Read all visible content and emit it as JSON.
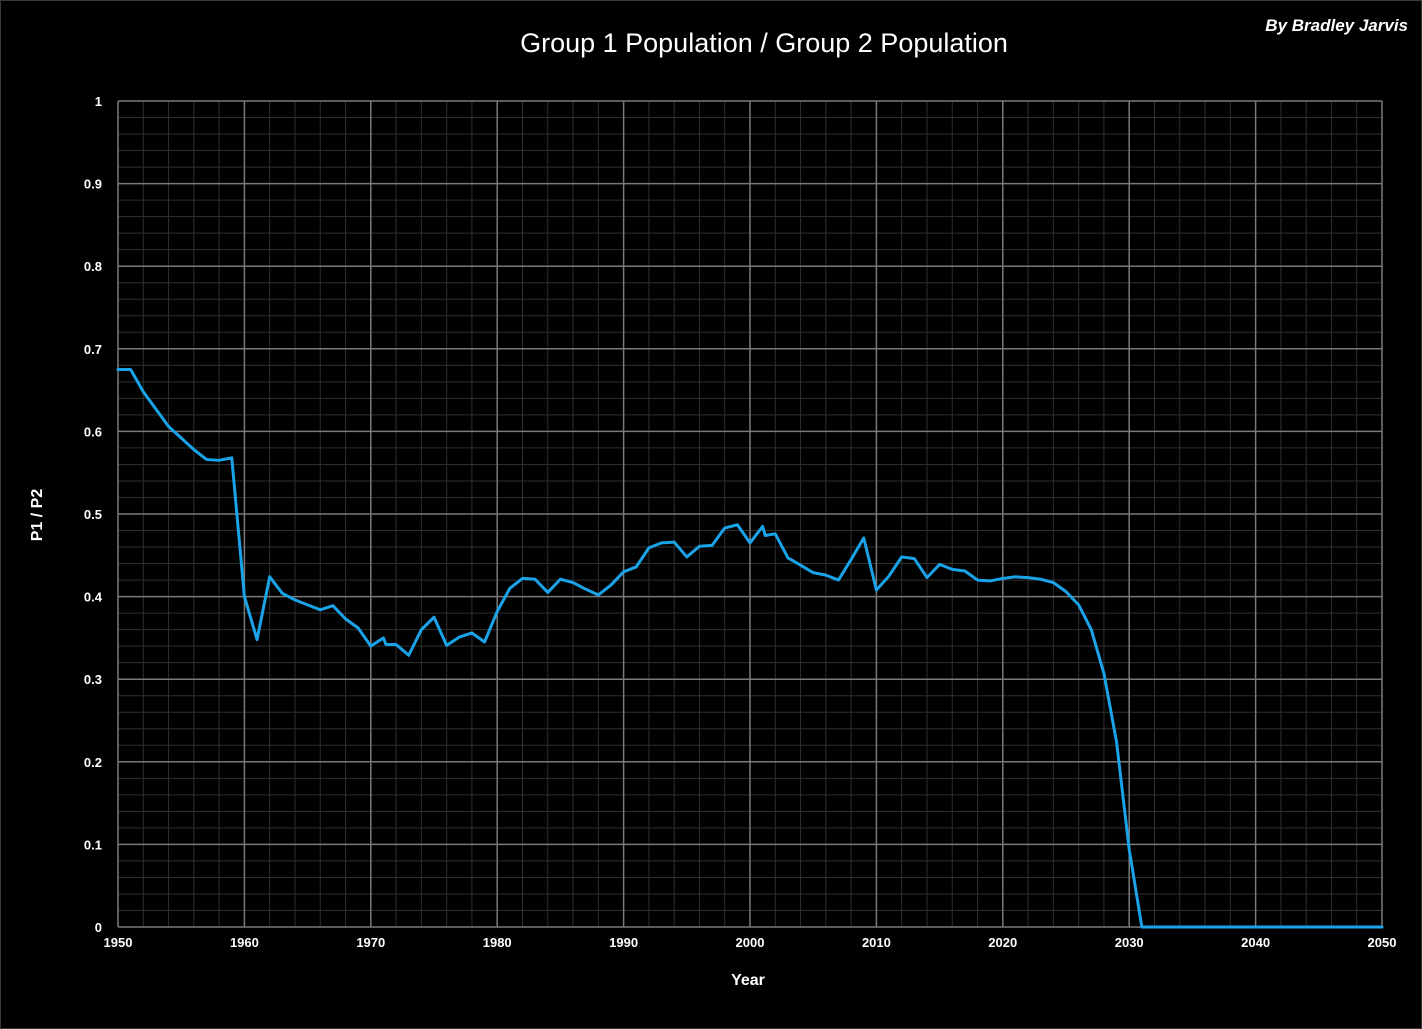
{
  "author": "By Bradley Jarvis",
  "chart_data": {
    "type": "line",
    "title": "Group 1 Population / Group 2 Population",
    "xlabel": "Year",
    "ylabel": "P1 / P2",
    "xlim": [
      1950,
      2050
    ],
    "ylim": [
      0,
      1
    ],
    "x_ticks": [
      "1950",
      "1960",
      "1970",
      "1980",
      "1990",
      "2000",
      "2010",
      "2020",
      "2030",
      "2040",
      "2050"
    ],
    "y_ticks": [
      "0",
      "0.1",
      "0.2",
      "0.3",
      "0.4",
      "0.5",
      "0.6",
      "0.7",
      "0.8",
      "0.9",
      "1"
    ],
    "grid": true,
    "line_color": "#1aa3e8",
    "series": [
      {
        "x": [
          1950,
          1951,
          1952,
          1953,
          1954,
          1955,
          1956,
          1957,
          1958,
          1959,
          1960,
          1961,
          1962,
          1963,
          1964,
          1965,
          1966,
          1967,
          1968,
          1969,
          1970,
          1971,
          1971.2,
          1972,
          1973,
          1974,
          1975,
          1976,
          1977,
          1978,
          1979,
          1980,
          1981,
          1982,
          1983,
          1984,
          1985,
          1986,
          1987,
          1988,
          1989,
          1990,
          1991,
          1992,
          1993,
          1994,
          1995,
          1996,
          1997,
          1998,
          1999,
          2000,
          2001,
          2001.2,
          2002,
          2003,
          2004,
          2005,
          2006,
          2007,
          2008,
          2009,
          2010,
          2011,
          2012,
          2013,
          2014,
          2015,
          2016,
          2017,
          2018,
          2019,
          2020,
          2021,
          2022,
          2023,
          2024,
          2025,
          2026,
          2027,
          2028,
          2029,
          2030,
          2031,
          2035,
          2040,
          2045,
          2050
        ],
        "y": [
          0.675,
          0.675,
          0.648,
          0.627,
          0.606,
          0.592,
          0.578,
          0.566,
          0.565,
          0.568,
          0.4,
          0.348,
          0.424,
          0.404,
          0.396,
          0.39,
          0.384,
          0.389,
          0.373,
          0.362,
          0.34,
          0.35,
          0.342,
          0.342,
          0.329,
          0.36,
          0.375,
          0.341,
          0.351,
          0.356,
          0.345,
          0.382,
          0.41,
          0.422,
          0.421,
          0.405,
          0.421,
          0.417,
          0.409,
          0.402,
          0.414,
          0.43,
          0.436,
          0.459,
          0.465,
          0.466,
          0.448,
          0.461,
          0.462,
          0.483,
          0.487,
          0.465,
          0.485,
          0.474,
          0.476,
          0.447,
          0.438,
          0.429,
          0.426,
          0.42,
          0.445,
          0.471,
          0.408,
          0.425,
          0.448,
          0.446,
          0.423,
          0.439,
          0.433,
          0.431,
          0.42,
          0.419,
          0.422,
          0.424,
          0.423,
          0.421,
          0.417,
          0.406,
          0.39,
          0.36,
          0.307,
          0.224,
          0.094,
          0.0,
          0.0,
          0.0,
          0.0,
          0.0
        ]
      }
    ]
  }
}
